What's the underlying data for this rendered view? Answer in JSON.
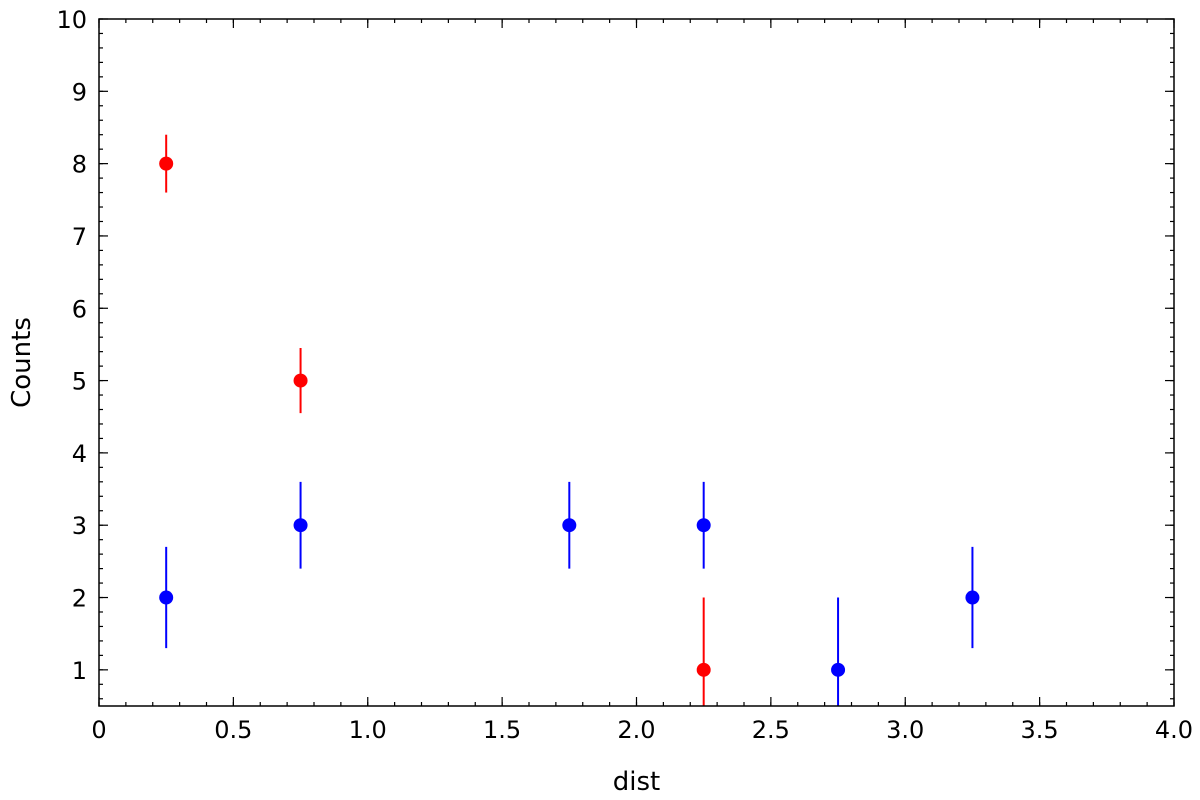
{
  "chart_data": {
    "type": "scatter",
    "xlabel": "dist",
    "ylabel": "Counts",
    "xlim": [
      0,
      4
    ],
    "ylim": [
      0.5,
      10
    ],
    "grid": false,
    "x_ticks": [
      0,
      0.5,
      1.0,
      1.5,
      2.0,
      2.5,
      3.0,
      3.5,
      4.0
    ],
    "x_tick_labels": [
      "0",
      "0.5",
      "1.0",
      "1.5",
      "2.0",
      "2.5",
      "3.0",
      "3.5",
      "4.0"
    ],
    "y_ticks": [
      1,
      2,
      3,
      4,
      5,
      6,
      7,
      8,
      9,
      10
    ],
    "y_tick_labels": [
      "1",
      "2",
      "3",
      "4",
      "5",
      "6",
      "7",
      "8",
      "9",
      "10"
    ],
    "series": [
      {
        "color": "#ff0000",
        "points": [
          {
            "x": 0.25,
            "y": 8,
            "err_low": 7.6,
            "err_high": 8.4
          },
          {
            "x": 0.75,
            "y": 5,
            "err_low": 4.55,
            "err_high": 5.45
          },
          {
            "x": 2.25,
            "y": 1,
            "err_low": 0.5,
            "err_high": 2.0
          }
        ]
      },
      {
        "color": "#0000ff",
        "points": [
          {
            "x": 0.25,
            "y": 2,
            "err_low": 1.3,
            "err_high": 2.7
          },
          {
            "x": 0.75,
            "y": 3,
            "err_low": 2.4,
            "err_high": 3.6
          },
          {
            "x": 1.75,
            "y": 3,
            "err_low": 2.4,
            "err_high": 3.6
          },
          {
            "x": 2.25,
            "y": 3,
            "err_low": 2.4,
            "err_high": 3.6
          },
          {
            "x": 2.75,
            "y": 1,
            "err_low": 0.5,
            "err_high": 2.0
          },
          {
            "x": 3.25,
            "y": 2,
            "err_low": 1.3,
            "err_high": 2.7
          }
        ]
      }
    ]
  }
}
